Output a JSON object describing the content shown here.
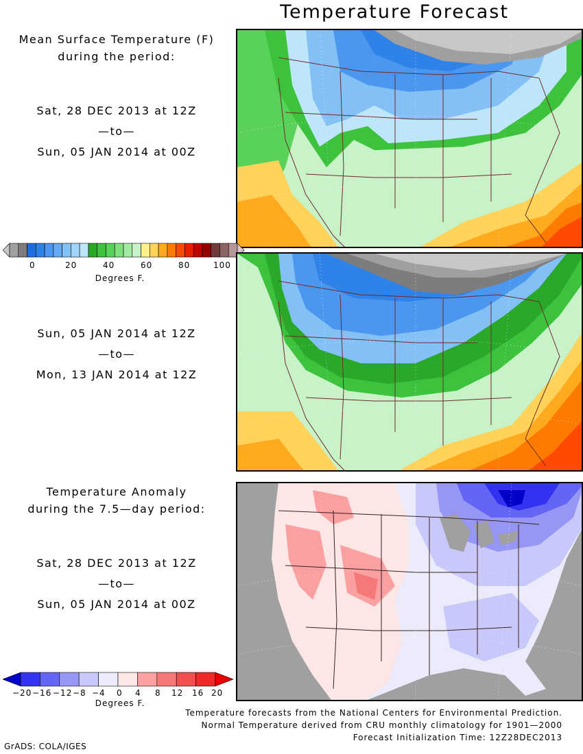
{
  "title": "Temperature Forecast",
  "panel1": {
    "heading_line1": "Mean Surface Temperature (F)",
    "heading_line2": "during the period:",
    "start": "Sat, 28 DEC 2013 at 12Z",
    "to": "—to—",
    "end": "Sun, 05 JAN 2014 at 00Z"
  },
  "panel2": {
    "start": "Sun, 05 JAN 2014 at 12Z",
    "to": "—to—",
    "end": "Mon, 13 JAN 2014 at 12Z"
  },
  "panel3": {
    "heading_line1": "Temperature Anomaly",
    "heading_line2": "during the 7.5—day period:",
    "start": "Sat, 28 DEC 2013 at 12Z",
    "to": "—to—",
    "end": "Sun, 05 JAN 2014 at 00Z"
  },
  "temp_colorbar": {
    "tick_labels": [
      "0",
      "20",
      "40",
      "60",
      "80",
      "100"
    ],
    "unit": "Degrees F.",
    "colors": [
      "#c8c8c8",
      "#a0a0a0",
      "#7d7d7d",
      "#1e6ee0",
      "#2f82e8",
      "#4b96ee",
      "#64aaf2",
      "#82c0f5",
      "#a0d4f8",
      "#bee6fa",
      "#2aa82a",
      "#3cc23c",
      "#5ad25a",
      "#7ee07e",
      "#a2eaa2",
      "#c8f2c8",
      "#fff08c",
      "#ffd25a",
      "#ffaa1e",
      "#ff7a00",
      "#ff4a00",
      "#e81e00",
      "#c00000",
      "#960000",
      "#6e3c3c",
      "#8c6464",
      "#b49696",
      "#dcc8c8"
    ]
  },
  "anom_colorbar": {
    "tick_labels": [
      "−20",
      "−16",
      "−12",
      "−8",
      "−4",
      "0",
      "4",
      "8",
      "12",
      "16",
      "20"
    ],
    "unit": "Degrees F.",
    "colors": [
      "#0000c8",
      "#3232f0",
      "#6464f5",
      "#9696f5",
      "#c8c8fa",
      "#ebebfc",
      "#fce6e6",
      "#faa0a0",
      "#f57878",
      "#f05050",
      "#f02828",
      "#e60000"
    ]
  },
  "credits": {
    "line1": "Temperature forecasts from the National Centers for Environmental Prediction.",
    "line2": "Normal Temperature derived from CRU monthly climatology for 1901—2000",
    "line3": "Forecast Initialization Time: 12Z28DEC2013"
  },
  "grads": "GrADS: COLA/IGES"
}
